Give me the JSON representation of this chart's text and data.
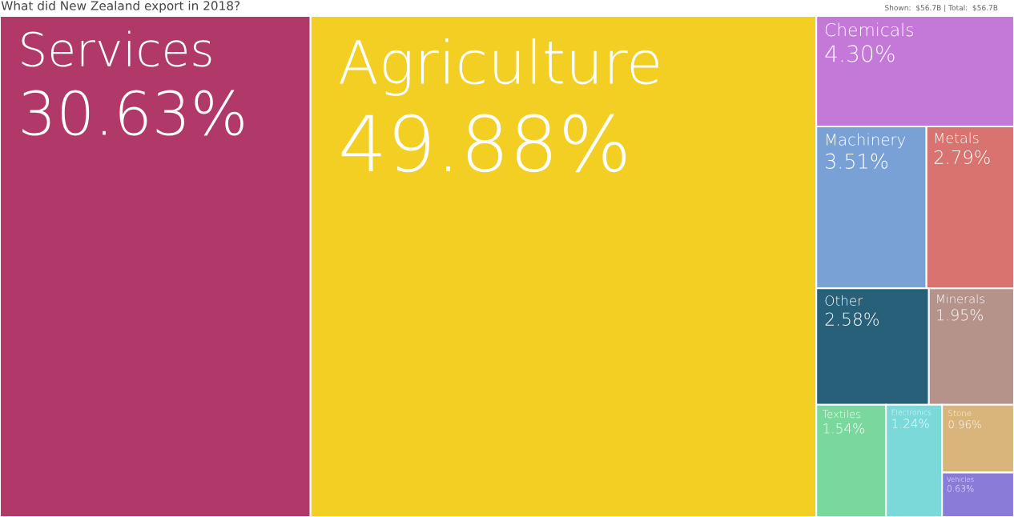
{
  "chart_data": {
    "type": "other",
    "title": "What did New Zealand export in 2018?",
    "annotations": [
      "Shown:  $56.7B | Total:  $56.7B"
    ],
    "categories": [
      "Services",
      "Agriculture",
      "Chemicals",
      "Machinery",
      "Metals",
      "Other",
      "Minerals",
      "Textiles",
      "Electronics",
      "Stone",
      "Vehicles"
    ],
    "values": [
      30.63,
      49.88,
      4.3,
      3.51,
      2.79,
      2.58,
      1.95,
      1.54,
      1.24,
      0.96,
      0.63
    ],
    "value_labels": [
      "30.63%",
      "49.88%",
      "4.30%",
      "3.51%",
      "2.79%",
      "2.58%",
      "1.95%",
      "1.54%",
      "1.24%",
      "0.96%",
      "0.63%"
    ],
    "colors": [
      "#b0396a",
      "#f2cf22",
      "#c479d9",
      "#7aa1d6",
      "#d8736f",
      "#285f79",
      "#b6938a",
      "#7bd89d",
      "#7bd9d9",
      "#d9b47b",
      "#8b7bd9"
    ]
  }
}
